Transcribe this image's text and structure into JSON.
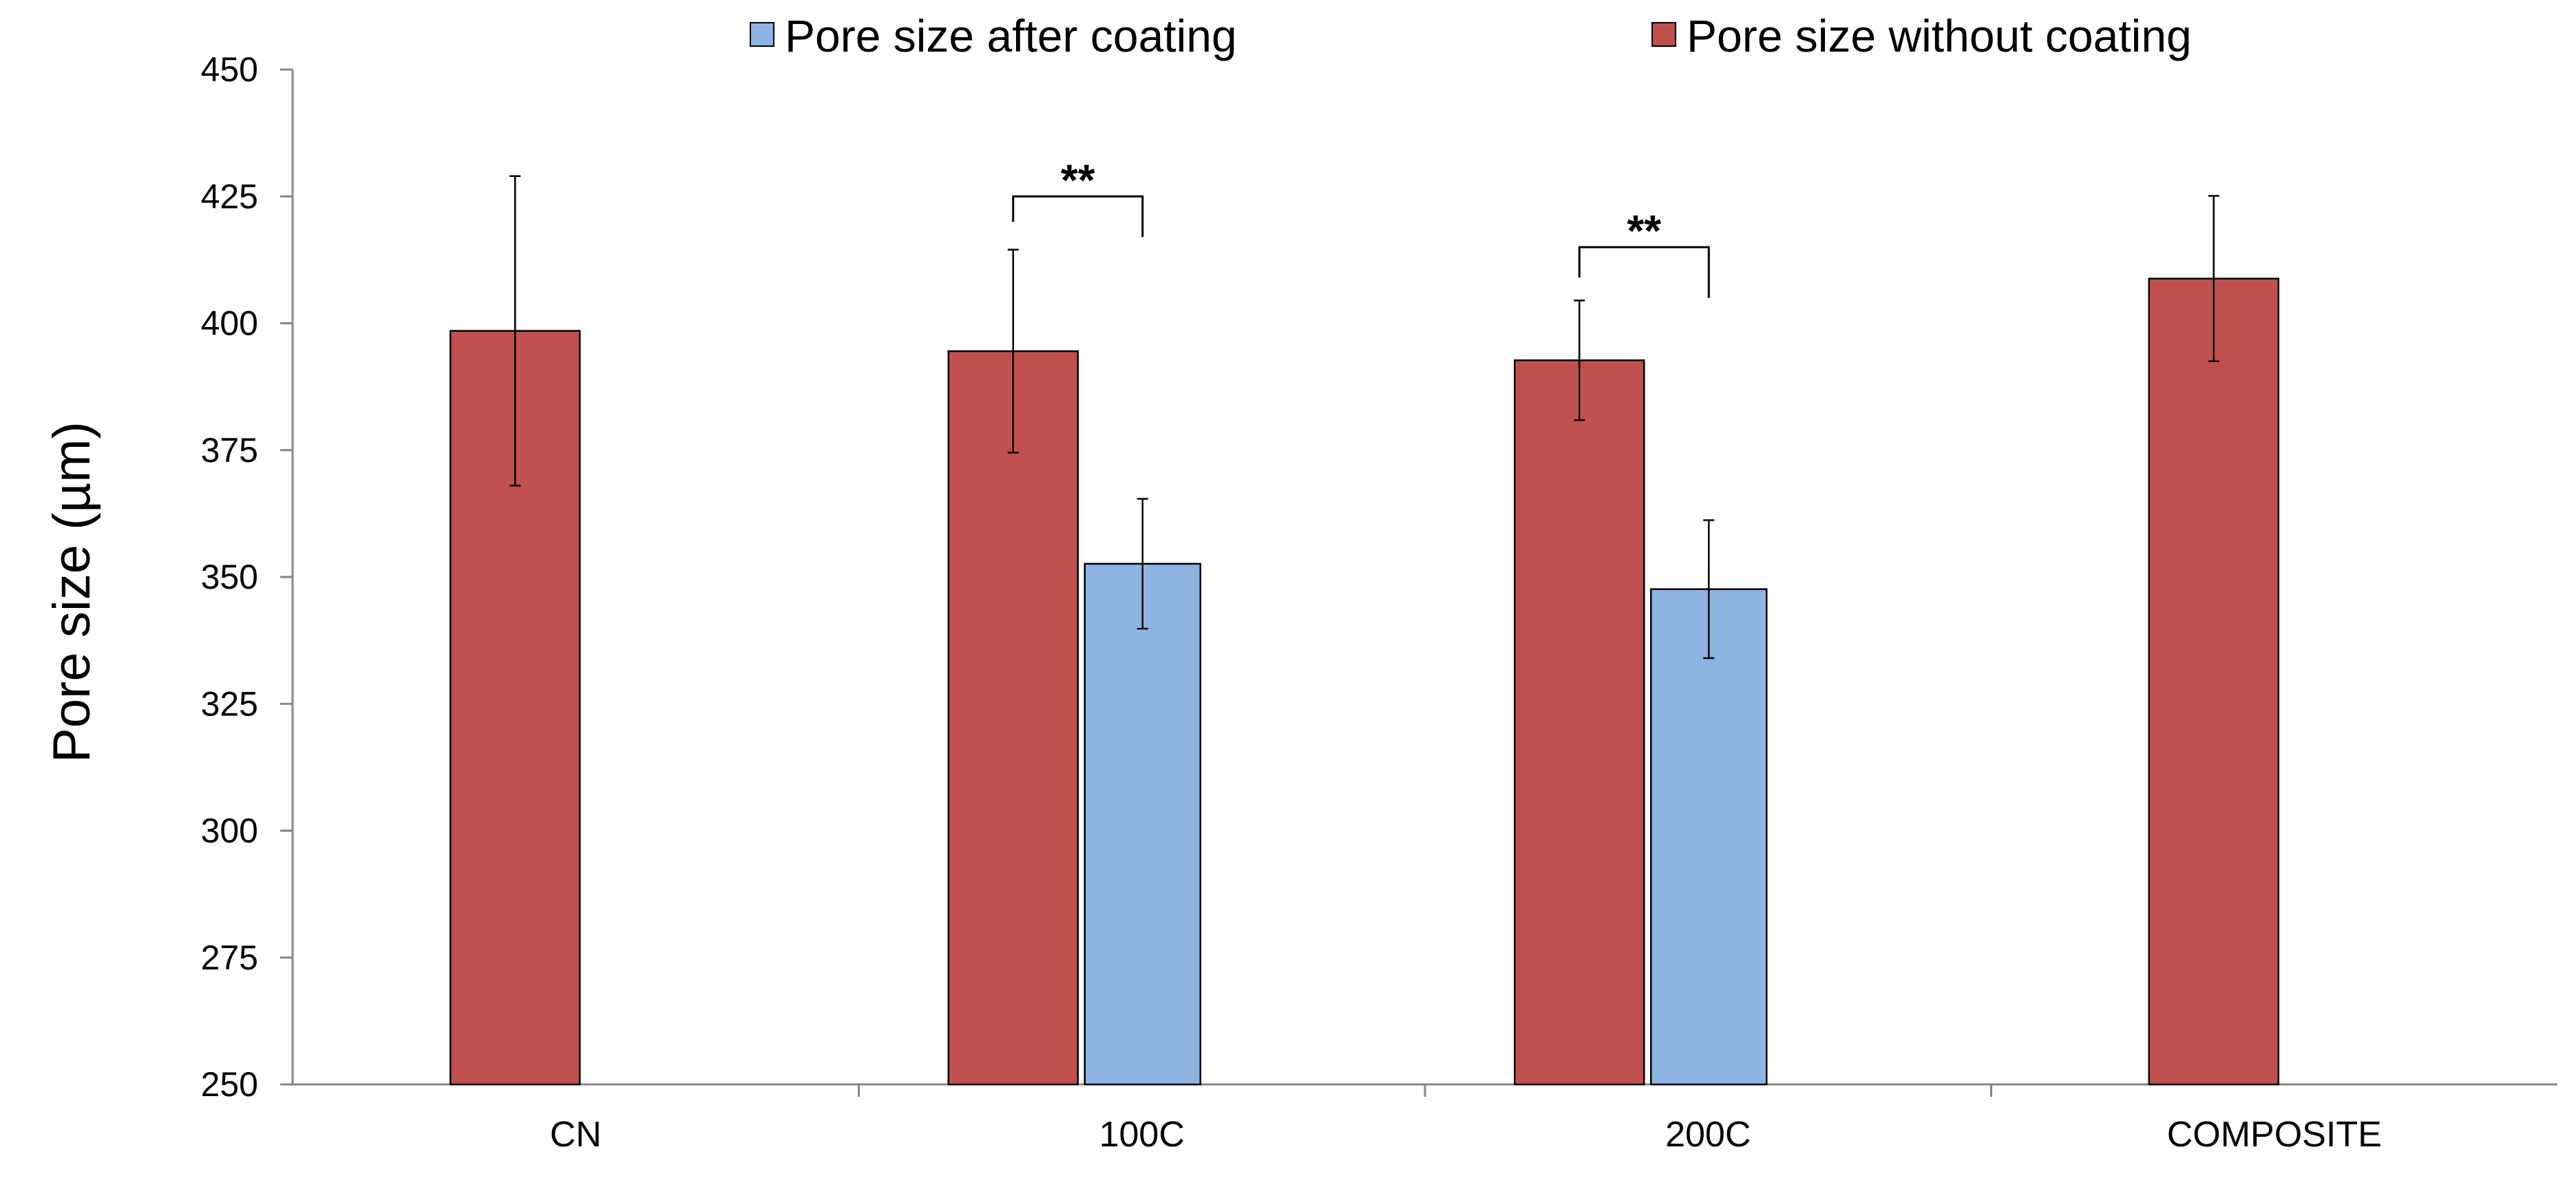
{
  "chart_data": {
    "type": "bar",
    "title": "",
    "xlabel": "",
    "ylabel": "Pore size  (µm)",
    "ylim": [
      250,
      450
    ],
    "yticks": [
      250,
      275,
      300,
      325,
      350,
      375,
      400,
      425,
      450
    ],
    "categories": [
      "CN",
      "100C",
      "200C",
      "COMPOSITE"
    ],
    "legend_position": "top",
    "grid": false,
    "series": [
      {
        "name": "Pore size without coating",
        "color": "#c0504d",
        "values": [
          398.5,
          394.5,
          392.7,
          408.8
        ],
        "errors": [
          30.5,
          20,
          11.8,
          16.3
        ]
      },
      {
        "name": "Pore size after coating",
        "color": "#8db3e2",
        "values": [
          null,
          352.6,
          347.6,
          null
        ],
        "errors": [
          null,
          12.8,
          13.6,
          null
        ]
      }
    ],
    "legend_order": [
      "Pore size after coating",
      "Pore size without coating"
    ],
    "annotations": [
      {
        "category": "100C",
        "text": "**",
        "bracket_value": 425,
        "left_drop_value": 420,
        "right_drop_value": 417
      },
      {
        "category": "200C",
        "text": "**",
        "bracket_value": 415,
        "left_drop_value": 409,
        "right_drop_value": 405
      }
    ]
  }
}
